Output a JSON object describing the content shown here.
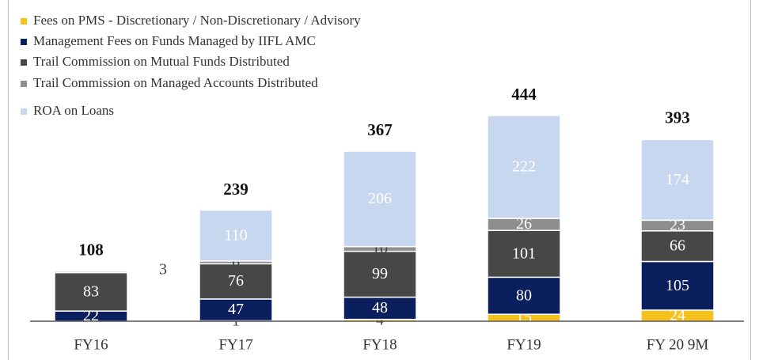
{
  "chart_data": {
    "type": "stacked_bar",
    "categories": [
      "FY16",
      "FY17",
      "FY18",
      "FY19",
      "FY 20 9M"
    ],
    "series": [
      {
        "name": "Fees on PMS - Discretionary / Non-Discretionary / Advisory",
        "color": "#f6c11a",
        "values": [
          null,
          1,
          4,
          15,
          24
        ]
      },
      {
        "name": "Management Fees on Funds Managed by IIFL AMC",
        "color": "#0b1f5e",
        "values": [
          22,
          47,
          48,
          80,
          105
        ]
      },
      {
        "name": "Trail Commission on Mutual Funds Distributed",
        "color": "#474747",
        "values": [
          83,
          76,
          99,
          101,
          66
        ]
      },
      {
        "name": "Trail Commission on Managed Accounts Distributed",
        "color": "#8e8e8e",
        "values": [
          3,
          6,
          10,
          26,
          23
        ]
      },
      {
        "name": "ROA on Loans",
        "color": "#c7d7ef",
        "values": [
          null,
          110,
          206,
          222,
          174
        ]
      }
    ],
    "totals": [
      108,
      239,
      367,
      444,
      393
    ]
  }
}
